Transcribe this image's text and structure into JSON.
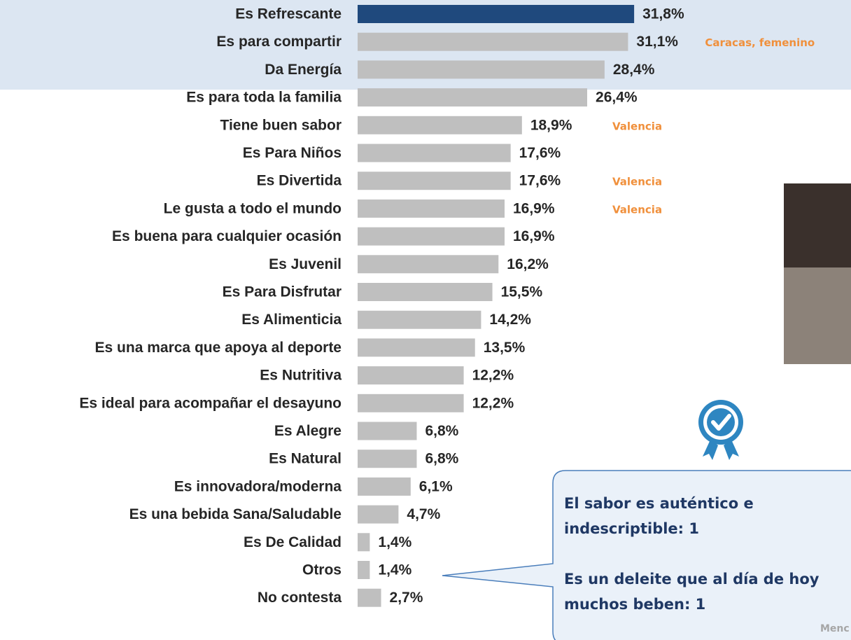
{
  "chart_data": {
    "type": "hbar",
    "categories": [
      "Es Refrescante",
      "Es para compartir",
      "Da Energía",
      "Es para toda la familia",
      "Tiene buen sabor",
      "Es Para Niños",
      "Es Divertida",
      "Le gusta a todo el mundo",
      "Es buena para cualquier ocasión",
      "Es Juvenil",
      "Es Para Disfrutar",
      "Es Alimenticia",
      "Es una marca que apoya al deporte",
      "Es Nutritiva",
      "Es ideal para acompañar el desayuno",
      "Es Alegre",
      "Es Natural",
      "Es innovadora/moderna",
      "Es una bebida Sana/Saludable",
      "Es De Calidad",
      "Otros",
      "No contesta"
    ],
    "values": [
      31.8,
      31.1,
      28.4,
      26.4,
      18.9,
      17.6,
      17.6,
      16.9,
      16.9,
      16.2,
      15.5,
      14.2,
      13.5,
      12.2,
      12.2,
      6.8,
      6.8,
      6.1,
      4.7,
      1.4,
      1.4,
      2.7
    ],
    "value_labels": [
      "31,8%",
      "31,1%",
      "28,4%",
      "26,4%",
      "18,9%",
      "17,6%",
      "17,6%",
      "16,9%",
      "16,9%",
      "16,2%",
      "15,5%",
      "14,2%",
      "13,5%",
      "12,2%",
      "12,2%",
      "6,8%",
      "6,8%",
      "6,1%",
      "4,7%",
      "1,4%",
      "1,4%",
      "2,7%"
    ],
    "colors": [
      "#1f497d",
      "#bfbfbf",
      "#bfbfbf",
      "#bfbfbf",
      "#bfbfbf",
      "#bfbfbf",
      "#bfbfbf",
      "#bfbfbf",
      "#bfbfbf",
      "#bfbfbf",
      "#bfbfbf",
      "#bfbfbf",
      "#bfbfbf",
      "#bfbfbf",
      "#bfbfbf",
      "#bfbfbf",
      "#bfbfbf",
      "#bfbfbf",
      "#bfbfbf",
      "#bfbfbf",
      "#bfbfbf",
      "#bfbfbf"
    ],
    "notes": [
      null,
      "Caracas, femenino",
      null,
      null,
      "Valencia",
      null,
      "Valencia",
      "Valencia",
      null,
      null,
      null,
      null,
      null,
      null,
      null,
      null,
      null,
      null,
      null,
      null,
      null,
      null
    ],
    "xlim": [
      0,
      40
    ],
    "callout": [
      "El sabor es auténtico e",
      "indescriptible: 1",
      "Es un deleite que al día de hoy",
      "muchos beben: 1"
    ],
    "footnote": "Menc"
  }
}
